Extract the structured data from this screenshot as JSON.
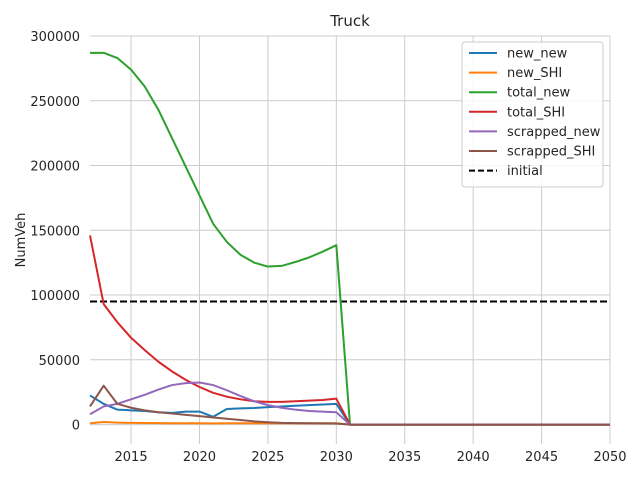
{
  "chart_data": {
    "type": "line",
    "title": "Truck",
    "xlabel": "",
    "ylabel": "NumVeh",
    "xlim": [
      2012,
      2050
    ],
    "ylim": [
      -15000,
      300000
    ],
    "xticks": [
      2015,
      2020,
      2025,
      2030,
      2035,
      2040,
      2045,
      2050
    ],
    "yticks": [
      0,
      50000,
      100000,
      150000,
      200000,
      250000,
      300000
    ],
    "grid": true,
    "legend_position": "top-right",
    "x": [
      2012,
      2013,
      2014,
      2015,
      2016,
      2017,
      2018,
      2019,
      2020,
      2021,
      2022,
      2023,
      2024,
      2025,
      2026,
      2027,
      2028,
      2029,
      2030,
      2031,
      2032,
      2033,
      2034,
      2035,
      2036,
      2037,
      2038,
      2039,
      2040,
      2041,
      2042,
      2043,
      2044,
      2045,
      2046,
      2047,
      2048,
      2049,
      2050
    ],
    "series": [
      {
        "name": "new_new",
        "color": "#1f77b4",
        "values": [
          22500,
          16000,
          11500,
          11000,
          10500,
          9500,
          9000,
          10000,
          10000,
          6000,
          12000,
          12500,
          12800,
          13500,
          14000,
          14500,
          15000,
          15500,
          16000,
          0,
          0,
          0,
          0,
          0,
          0,
          0,
          0,
          0,
          0,
          0,
          0,
          0,
          0,
          0,
          0,
          0,
          0,
          0,
          0
        ]
      },
      {
        "name": "new_SHI",
        "color": "#ff7f0e",
        "values": [
          1000,
          2000,
          1500,
          1300,
          1200,
          1100,
          1000,
          1000,
          1000,
          900,
          1000,
          1000,
          1000,
          1000,
          1000,
          1000,
          1000,
          1000,
          1000,
          0,
          0,
          0,
          0,
          0,
          0,
          0,
          0,
          0,
          0,
          0,
          0,
          0,
          0,
          0,
          0,
          0,
          0,
          0,
          0
        ]
      },
      {
        "name": "total_new",
        "color": "#2ca02c",
        "values": [
          287000,
          287000,
          283000,
          274000,
          261000,
          243000,
          221000,
          199000,
          177000,
          155000,
          141000,
          131000,
          125000,
          122000,
          122500,
          125500,
          129000,
          133500,
          138500,
          0,
          0,
          0,
          0,
          0,
          0,
          0,
          0,
          0,
          0,
          0,
          0,
          0,
          0,
          0,
          0,
          0,
          0,
          0,
          0
        ]
      },
      {
        "name": "total_SHI",
        "color": "#d62728",
        "values": [
          146000,
          93000,
          79000,
          67000,
          57500,
          48500,
          41000,
          34500,
          29000,
          24500,
          21500,
          19500,
          18000,
          17500,
          17500,
          18000,
          18500,
          19000,
          20000,
          0,
          0,
          0,
          0,
          0,
          0,
          0,
          0,
          0,
          0,
          0,
          0,
          0,
          0,
          0,
          0,
          0,
          0,
          0,
          0
        ]
      },
      {
        "name": "scrapped_new",
        "color": "#9467bd",
        "values": [
          8000,
          14000,
          16000,
          19500,
          23000,
          27000,
          30500,
          32000,
          32500,
          30500,
          26500,
          22000,
          18000,
          15000,
          13000,
          11500,
          10500,
          10000,
          9500,
          0,
          0,
          0,
          0,
          0,
          0,
          0,
          0,
          0,
          0,
          0,
          0,
          0,
          0,
          0,
          0,
          0,
          0,
          0,
          0
        ]
      },
      {
        "name": "scrapped_SHI",
        "color": "#8c564b",
        "values": [
          14000,
          30000,
          16000,
          13000,
          11000,
          9500,
          8500,
          7500,
          6500,
          5500,
          4500,
          3500,
          2500,
          1800,
          1300,
          1100,
          1000,
          900,
          800,
          0,
          0,
          0,
          0,
          0,
          0,
          0,
          0,
          0,
          0,
          0,
          0,
          0,
          0,
          0,
          0,
          0,
          0,
          0,
          0
        ]
      }
    ],
    "hlines": [
      {
        "name": "initial",
        "y": 95000,
        "color": "#000000",
        "dash": true
      }
    ]
  }
}
